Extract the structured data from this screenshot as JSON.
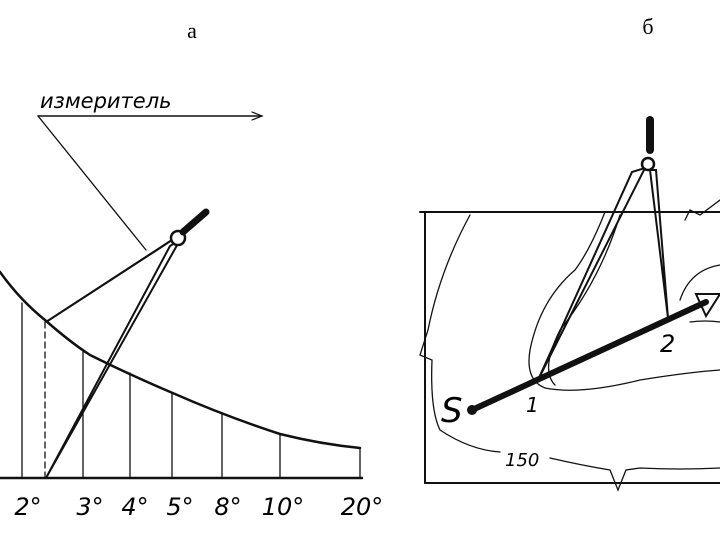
{
  "panels": [
    {
      "label": "а",
      "pointer_label": "измеритель",
      "scale_labels": [
        "2°",
        "3°",
        "4°",
        "5°",
        "8°",
        "10°",
        "20°"
      ]
    },
    {
      "label": "б",
      "start_label": "S",
      "point_labels": [
        "1",
        "2"
      ],
      "contour_label": "150"
    }
  ]
}
